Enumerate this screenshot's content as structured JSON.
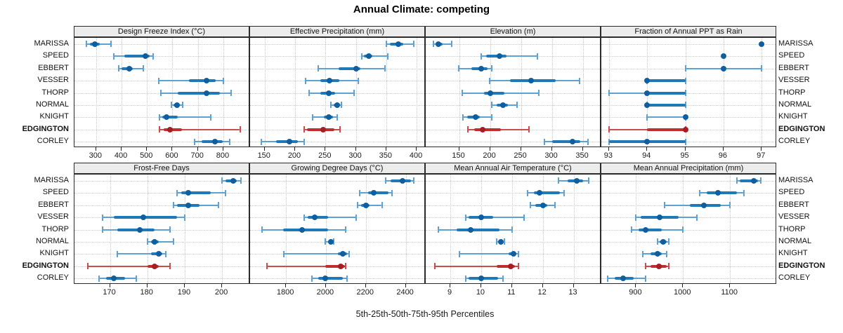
{
  "title": "Annual Climate: competing",
  "caption": "5th-25th-50th-75th-95th Percentiles",
  "stations": [
    "MARISSA",
    "SPEED",
    "EBBERT",
    "VESSER",
    "THORP",
    "NORMAL",
    "KNIGHT",
    "EDGINGTON",
    "CORLEY"
  ],
  "highlight_station": "EDGINGTON",
  "colors": {
    "base_whisker": "#5da2d3",
    "base_bar": "#1f78b8",
    "base_dot": "#0f5fa0",
    "highlight_whisker": "#cc4c4c",
    "highlight_bar": "#c02f2f",
    "highlight_dot": "#a81e25",
    "strip_bg": "#ececec",
    "grid": "#c9c9c9"
  },
  "chart_data": {
    "type": "dotplot-percentiles",
    "percentile_labels": [
      "5th",
      "25th",
      "50th",
      "75th",
      "95th"
    ],
    "legend_note": "whisker = 5th-95th, thick bar = 25th-75th, dot = median",
    "panels": [
      {
        "title": "Design Freeze Index (°C)",
        "row": 0,
        "col": 0,
        "xlim": [
          215,
          905
        ],
        "ticks": [
          300,
          400,
          500,
          600,
          700,
          800
        ],
        "values": [
          [
            263,
            276,
            296,
            314,
            358
          ],
          [
            369,
            410,
            495,
            511,
            524
          ],
          [
            390,
            400,
            430,
            445,
            485
          ],
          [
            545,
            665,
            735,
            770,
            800
          ],
          [
            555,
            620,
            735,
            785,
            830
          ],
          [
            595,
            605,
            618,
            628,
            640
          ],
          [
            548,
            560,
            576,
            620,
            750
          ],
          [
            548,
            565,
            591,
            637,
            865
          ],
          [
            688,
            714,
            766,
            796,
            824
          ]
        ]
      },
      {
        "title": "Effective Precipitation (mm)",
        "row": 0,
        "col": 1,
        "xlim": [
          126,
          415
        ],
        "ticks": [
          150,
          200,
          250,
          300,
          350,
          400
        ],
        "values": [
          [
            350,
            356,
            370,
            378,
            395
          ],
          [
            310,
            313,
            321,
            327,
            353
          ],
          [
            238,
            272,
            300,
            307,
            348
          ],
          [
            217,
            242,
            257,
            273,
            304
          ],
          [
            223,
            242,
            255,
            266,
            297
          ],
          [
            259,
            264,
            269,
            273,
            276
          ],
          [
            229,
            247,
            256,
            262,
            269
          ],
          [
            215,
            220,
            246,
            265,
            274
          ],
          [
            144,
            169,
            191,
            205,
            215
          ]
        ]
      },
      {
        "title": "Elevation (m)",
        "row": 0,
        "col": 2,
        "xlim": [
          96,
          380
        ],
        "ticks": [
          150,
          200,
          250,
          300,
          350
        ],
        "values": [
          [
            109,
            112,
            117,
            123,
            138
          ],
          [
            186,
            194,
            215,
            227,
            277
          ],
          [
            149,
            170,
            186,
            196,
            203
          ],
          [
            199,
            232,
            266,
            306,
            345
          ],
          [
            155,
            190,
            201,
            223,
            279
          ],
          [
            203,
            211,
            221,
            229,
            244
          ],
          [
            156,
            163,
            177,
            183,
            203
          ],
          [
            164,
            174,
            188,
            217,
            263
          ],
          [
            288,
            300,
            333,
            346,
            358
          ]
        ]
      },
      {
        "title": "Fraction of Annual PPT as Rain",
        "row": 0,
        "col": 3,
        "xlim": [
          92.8,
          97.4
        ],
        "ticks": [
          93,
          94,
          95,
          96,
          97
        ],
        "values": [
          [
            97,
            97,
            97,
            97,
            97
          ],
          [
            96,
            96,
            96,
            96,
            96
          ],
          [
            95,
            96,
            96,
            96,
            97
          ],
          [
            94,
            94,
            94,
            95,
            95
          ],
          [
            93,
            94,
            94,
            95,
            95
          ],
          [
            94,
            94,
            94,
            95,
            95
          ],
          [
            94,
            95,
            95,
            95,
            95
          ],
          [
            93,
            94,
            95,
            95,
            95
          ],
          [
            93,
            93,
            94,
            95,
            95
          ]
        ]
      },
      {
        "title": "Frost-Free Days",
        "row": 1,
        "col": 0,
        "xlim": [
          160.5,
          207.5
        ],
        "ticks": [
          170,
          180,
          190,
          200
        ],
        "values": [
          [
            200,
            201,
            203,
            204,
            205
          ],
          [
            188,
            189,
            191,
            197,
            201
          ],
          [
            187,
            188,
            191,
            194,
            199
          ],
          [
            168,
            171,
            179,
            188,
            190
          ],
          [
            168,
            172,
            178,
            182,
            186
          ],
          [
            180,
            181,
            182,
            183,
            187
          ],
          [
            172,
            181,
            183,
            184,
            185
          ],
          [
            164,
            180,
            182,
            183,
            186
          ],
          [
            167,
            169,
            171,
            174,
            177
          ]
        ]
      },
      {
        "title": "Growing Degree Days (°C)",
        "row": 1,
        "col": 1,
        "xlim": [
          1620,
          2500
        ],
        "ticks": [
          1800,
          2000,
          2200,
          2400
        ],
        "values": [
          [
            2300,
            2325,
            2385,
            2425,
            2440
          ],
          [
            2170,
            2210,
            2240,
            2315,
            2330
          ],
          [
            2160,
            2175,
            2200,
            2220,
            2280
          ],
          [
            1890,
            1910,
            1945,
            2010,
            2150
          ],
          [
            1680,
            1785,
            1880,
            2010,
            2100
          ],
          [
            1995,
            2010,
            2025,
            2035,
            2040
          ],
          [
            1790,
            2060,
            2085,
            2105,
            2115
          ],
          [
            1705,
            1995,
            2075,
            2095,
            2100
          ],
          [
            1930,
            1960,
            1995,
            2085,
            2105
          ]
        ]
      },
      {
        "title": "Mean Annual Air Temperature (°C)",
        "row": 1,
        "col": 2,
        "xlim": [
          8.2,
          13.9
        ],
        "ticks": [
          9,
          10,
          11,
          12,
          13
        ],
        "values": [
          [
            12.5,
            12.8,
            13.1,
            13.3,
            13.5
          ],
          [
            11.5,
            11.7,
            11.9,
            12.55,
            12.7
          ],
          [
            11.6,
            11.75,
            12.0,
            12.15,
            12.4
          ],
          [
            9.5,
            9.6,
            10.0,
            10.4,
            11.4
          ],
          [
            8.6,
            9.2,
            9.65,
            10.6,
            11.0
          ],
          [
            10.5,
            10.6,
            10.65,
            10.7,
            10.75
          ],
          [
            9.3,
            10.9,
            11.05,
            11.15,
            11.2
          ],
          [
            8.5,
            10.5,
            10.95,
            11.1,
            11.2
          ],
          [
            9.5,
            9.6,
            10.0,
            10.55,
            10.7
          ]
        ]
      },
      {
        "title": "Mean Annual Precipitation (mm)",
        "row": 1,
        "col": 3,
        "xlim": [
          826,
          1200
        ],
        "ticks": [
          900,
          1000,
          1100
        ],
        "values": [
          [
            1115,
            1120,
            1150,
            1160,
            1165
          ],
          [
            1035,
            1050,
            1075,
            1115,
            1130
          ],
          [
            960,
            1015,
            1045,
            1080,
            1100
          ],
          [
            900,
            910,
            950,
            990,
            1030
          ],
          [
            890,
            905,
            920,
            955,
            1000
          ],
          [
            945,
            950,
            958,
            965,
            970
          ],
          [
            915,
            930,
            945,
            955,
            965
          ],
          [
            920,
            930,
            948,
            965,
            970
          ],
          [
            840,
            855,
            872,
            895,
            920
          ]
        ]
      }
    ]
  }
}
